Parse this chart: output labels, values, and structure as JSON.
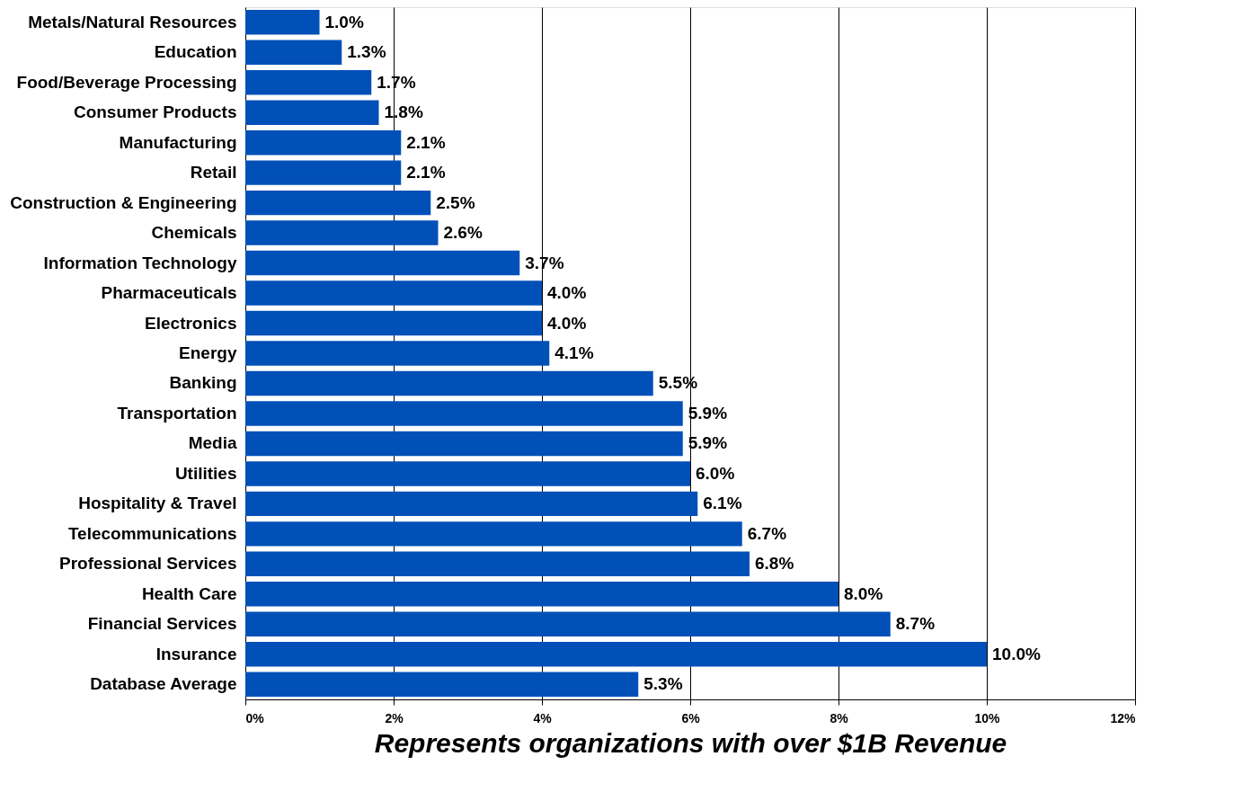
{
  "chart_data": {
    "type": "bar",
    "orientation": "horizontal",
    "xlabel": "Represents organizations with over $1B Revenue",
    "categories": [
      "Metals/Natural Resources",
      "Education",
      "Food/Beverage Processing",
      "Consumer Products",
      "Manufacturing",
      "Retail",
      "Construction & Engineering",
      "Chemicals",
      "Information Technology",
      "Pharmaceuticals",
      "Electronics",
      "Energy",
      "Banking",
      "Transportation",
      "Media",
      "Utilities",
      "Hospitality & Travel",
      "Telecommunications",
      "Professional Services",
      "Health Care",
      "Financial Services",
      "Insurance",
      "Database Average"
    ],
    "values": [
      1.0,
      1.3,
      1.7,
      1.8,
      2.1,
      2.1,
      2.5,
      2.6,
      3.7,
      4.0,
      4.0,
      4.1,
      5.5,
      5.9,
      5.9,
      6.0,
      6.1,
      6.7,
      6.8,
      8.0,
      8.7,
      10.0,
      5.3
    ],
    "value_labels": [
      "1.0%",
      "1.3%",
      "1.7%",
      "1.8%",
      "2.1%",
      "2.1%",
      "2.5%",
      "2.6%",
      "3.7%",
      "4.0%",
      "4.0%",
      "4.1%",
      "5.5%",
      "5.9%",
      "5.9%",
      "6.0%",
      "6.1%",
      "6.7%",
      "6.8%",
      "8.0%",
      "8.7%",
      "10.0%",
      "5.3%"
    ],
    "color": "#0050b8",
    "xlim": [
      0,
      12
    ],
    "xticks": [
      {
        "value": 0,
        "label": "0%"
      },
      {
        "value": 2,
        "label": "2%"
      },
      {
        "value": 4,
        "label": "4%"
      },
      {
        "value": 6,
        "label": "6%"
      },
      {
        "value": 8,
        "label": "8%"
      },
      {
        "value": 10,
        "label": "10%"
      },
      {
        "value": 12,
        "label": "12%"
      }
    ],
    "grid": "x"
  }
}
